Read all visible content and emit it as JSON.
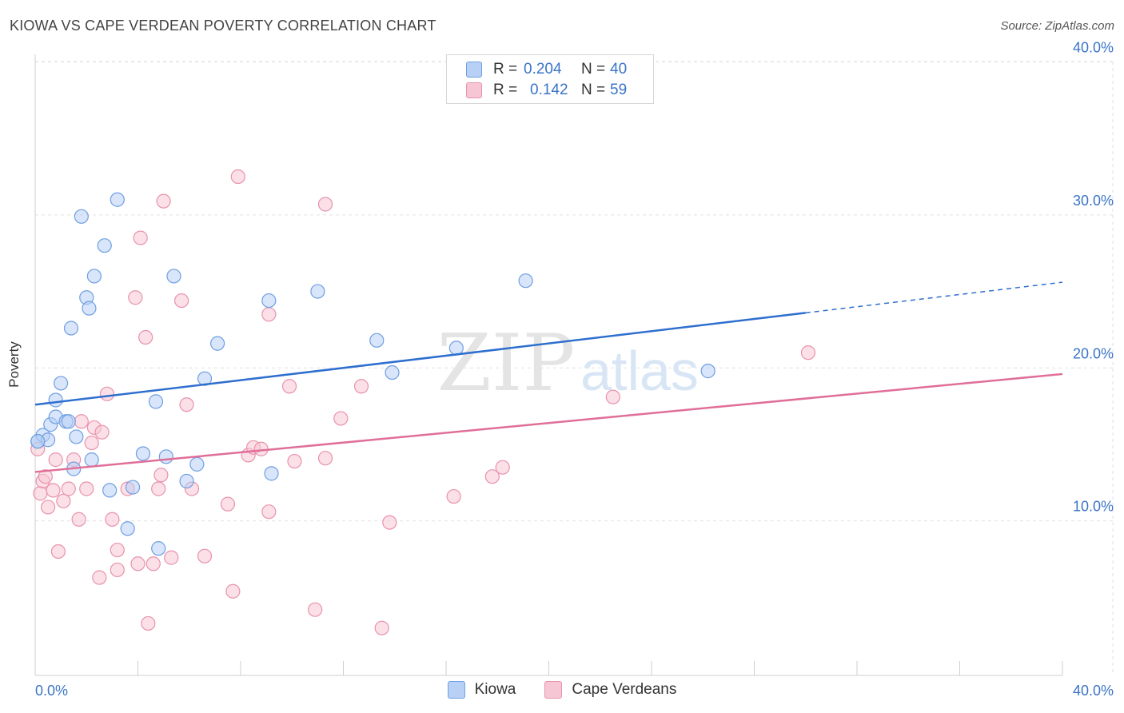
{
  "header": {
    "title": "KIOWA VS CAPE VERDEAN POVERTY CORRELATION CHART",
    "source": "Source: ZipAtlas.com"
  },
  "watermark": {
    "zip": "ZIP",
    "atlas": "atlas"
  },
  "legend_top": {
    "rows": [
      {
        "r_label": "R =",
        "r_value": "0.204",
        "n_label": "N =",
        "n_value": "40"
      },
      {
        "r_label": "R =",
        "r_value": "0.142",
        "n_label": "N =",
        "n_value": "59"
      }
    ]
  },
  "colors": {
    "kiowa_fill": "#b8d0f5",
    "kiowa_stroke": "#6f9fe0",
    "kiowa_line": "#2f6fcf",
    "cape_fill": "#f7c6d4",
    "cape_stroke": "#e892ad",
    "cape_line": "#e06e98",
    "tick_text": "#3b74c7",
    "grid": "#e2e2e2"
  },
  "chart_data": {
    "type": "scatter",
    "title": "KIOWA VS CAPE VERDEAN POVERTY CORRELATION CHART",
    "xlabel": "",
    "ylabel": "Poverty",
    "xlim": [
      0,
      40
    ],
    "ylim": [
      0,
      40
    ],
    "x_tick_labels": [
      "0.0%",
      "40.0%"
    ],
    "y_ticks": [
      10,
      20,
      30,
      40
    ],
    "y_tick_labels": [
      "10.0%",
      "20.0%",
      "30.0%",
      "40.0%"
    ],
    "legend": [
      "Kiowa",
      "Cape Verdeans"
    ],
    "series": [
      {
        "name": "Kiowa",
        "r": 0.204,
        "n": 40,
        "trend": {
          "x0": 0,
          "y0": 17.6,
          "x1": 30.0,
          "y1": 23.6,
          "dash_to_x": 40,
          "dash_to_y": 25.6
        },
        "points": [
          [
            0.1,
            15.2
          ],
          [
            0.3,
            15.6
          ],
          [
            0.5,
            15.3
          ],
          [
            0.6,
            16.3
          ],
          [
            0.8,
            17.9
          ],
          [
            0.8,
            16.8
          ],
          [
            1.0,
            19.0
          ],
          [
            1.2,
            16.5
          ],
          [
            1.3,
            16.5
          ],
          [
            1.4,
            22.6
          ],
          [
            1.5,
            13.4
          ],
          [
            1.6,
            15.5
          ],
          [
            1.8,
            29.9
          ],
          [
            2.0,
            24.6
          ],
          [
            2.1,
            23.9
          ],
          [
            2.2,
            14.0
          ],
          [
            2.3,
            26.0
          ],
          [
            2.7,
            28.0
          ],
          [
            2.9,
            12.0
          ],
          [
            3.2,
            31.0
          ],
          [
            3.6,
            9.5
          ],
          [
            3.8,
            12.2
          ],
          [
            4.2,
            14.4
          ],
          [
            4.7,
            17.8
          ],
          [
            4.8,
            8.2
          ],
          [
            5.1,
            14.2
          ],
          [
            5.4,
            26.0
          ],
          [
            5.9,
            12.6
          ],
          [
            6.3,
            13.7
          ],
          [
            6.6,
            19.3
          ],
          [
            7.1,
            21.6
          ],
          [
            9.1,
            24.4
          ],
          [
            9.2,
            13.1
          ],
          [
            11.0,
            25.0
          ],
          [
            13.3,
            21.8
          ],
          [
            13.9,
            19.7
          ],
          [
            16.4,
            21.3
          ],
          [
            19.1,
            25.7
          ],
          [
            26.2,
            19.8
          ],
          [
            0.1,
            15.2
          ]
        ]
      },
      {
        "name": "Cape Verdeans",
        "r": 0.142,
        "n": 59,
        "trend": {
          "x0": 0,
          "y0": 13.2,
          "x1": 40,
          "y1": 19.6
        },
        "points": [
          [
            0.1,
            14.7
          ],
          [
            0.2,
            11.8
          ],
          [
            0.3,
            12.6
          ],
          [
            0.5,
            10.9
          ],
          [
            0.7,
            12.0
          ],
          [
            0.8,
            14.0
          ],
          [
            0.9,
            8.0
          ],
          [
            1.1,
            11.3
          ],
          [
            1.3,
            12.1
          ],
          [
            1.5,
            14.0
          ],
          [
            1.7,
            10.1
          ],
          [
            1.8,
            16.5
          ],
          [
            2.0,
            12.1
          ],
          [
            2.2,
            15.1
          ],
          [
            2.3,
            16.1
          ],
          [
            2.5,
            6.3
          ],
          [
            2.6,
            15.8
          ],
          [
            2.8,
            18.3
          ],
          [
            3.0,
            10.1
          ],
          [
            3.2,
            8.1
          ],
          [
            3.2,
            6.8
          ],
          [
            3.6,
            12.1
          ],
          [
            3.9,
            24.6
          ],
          [
            4.0,
            7.2
          ],
          [
            4.1,
            28.5
          ],
          [
            4.3,
            22.0
          ],
          [
            4.4,
            3.3
          ],
          [
            4.6,
            7.2
          ],
          [
            4.8,
            12.1
          ],
          [
            4.9,
            13.0
          ],
          [
            5.0,
            30.9
          ],
          [
            5.3,
            7.6
          ],
          [
            5.7,
            24.4
          ],
          [
            5.9,
            17.6
          ],
          [
            6.1,
            12.1
          ],
          [
            6.6,
            7.7
          ],
          [
            7.5,
            11.1
          ],
          [
            7.7,
            5.4
          ],
          [
            7.9,
            32.5
          ],
          [
            8.3,
            14.3
          ],
          [
            8.5,
            14.8
          ],
          [
            8.8,
            14.7
          ],
          [
            9.1,
            10.6
          ],
          [
            9.1,
            23.5
          ],
          [
            9.9,
            18.8
          ],
          [
            10.1,
            13.9
          ],
          [
            10.9,
            4.2
          ],
          [
            11.3,
            30.7
          ],
          [
            11.3,
            14.1
          ],
          [
            11.9,
            16.7
          ],
          [
            12.7,
            18.8
          ],
          [
            13.5,
            3.0
          ],
          [
            13.8,
            9.9
          ],
          [
            16.3,
            11.6
          ],
          [
            17.8,
            12.9
          ],
          [
            18.2,
            13.5
          ],
          [
            22.5,
            18.1
          ],
          [
            30.1,
            21.0
          ],
          [
            0.4,
            12.9
          ]
        ]
      }
    ]
  }
}
